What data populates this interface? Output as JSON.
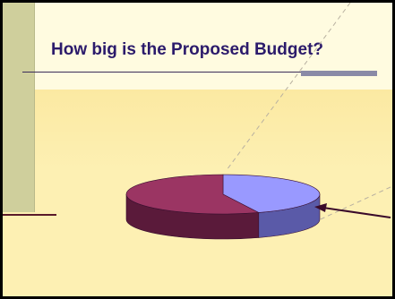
{
  "slide": {
    "title": "How big is the Proposed Budget?"
  },
  "colors": {
    "background": "#fdf0b3",
    "title": "#2b1a6b",
    "slice_maroon_top": "#9b3563",
    "slice_maroon_side": "#5a1a3a",
    "slice_blue_top": "#9999ff",
    "slice_blue_side": "#5a5aa8",
    "arrow": "#3a0a2a"
  },
  "chart_data": {
    "type": "pie",
    "title": "",
    "slices": [
      {
        "label": "",
        "value": 56,
        "color": "#9b3563"
      },
      {
        "label": "",
        "value": 44,
        "color": "#9999ff"
      }
    ]
  }
}
